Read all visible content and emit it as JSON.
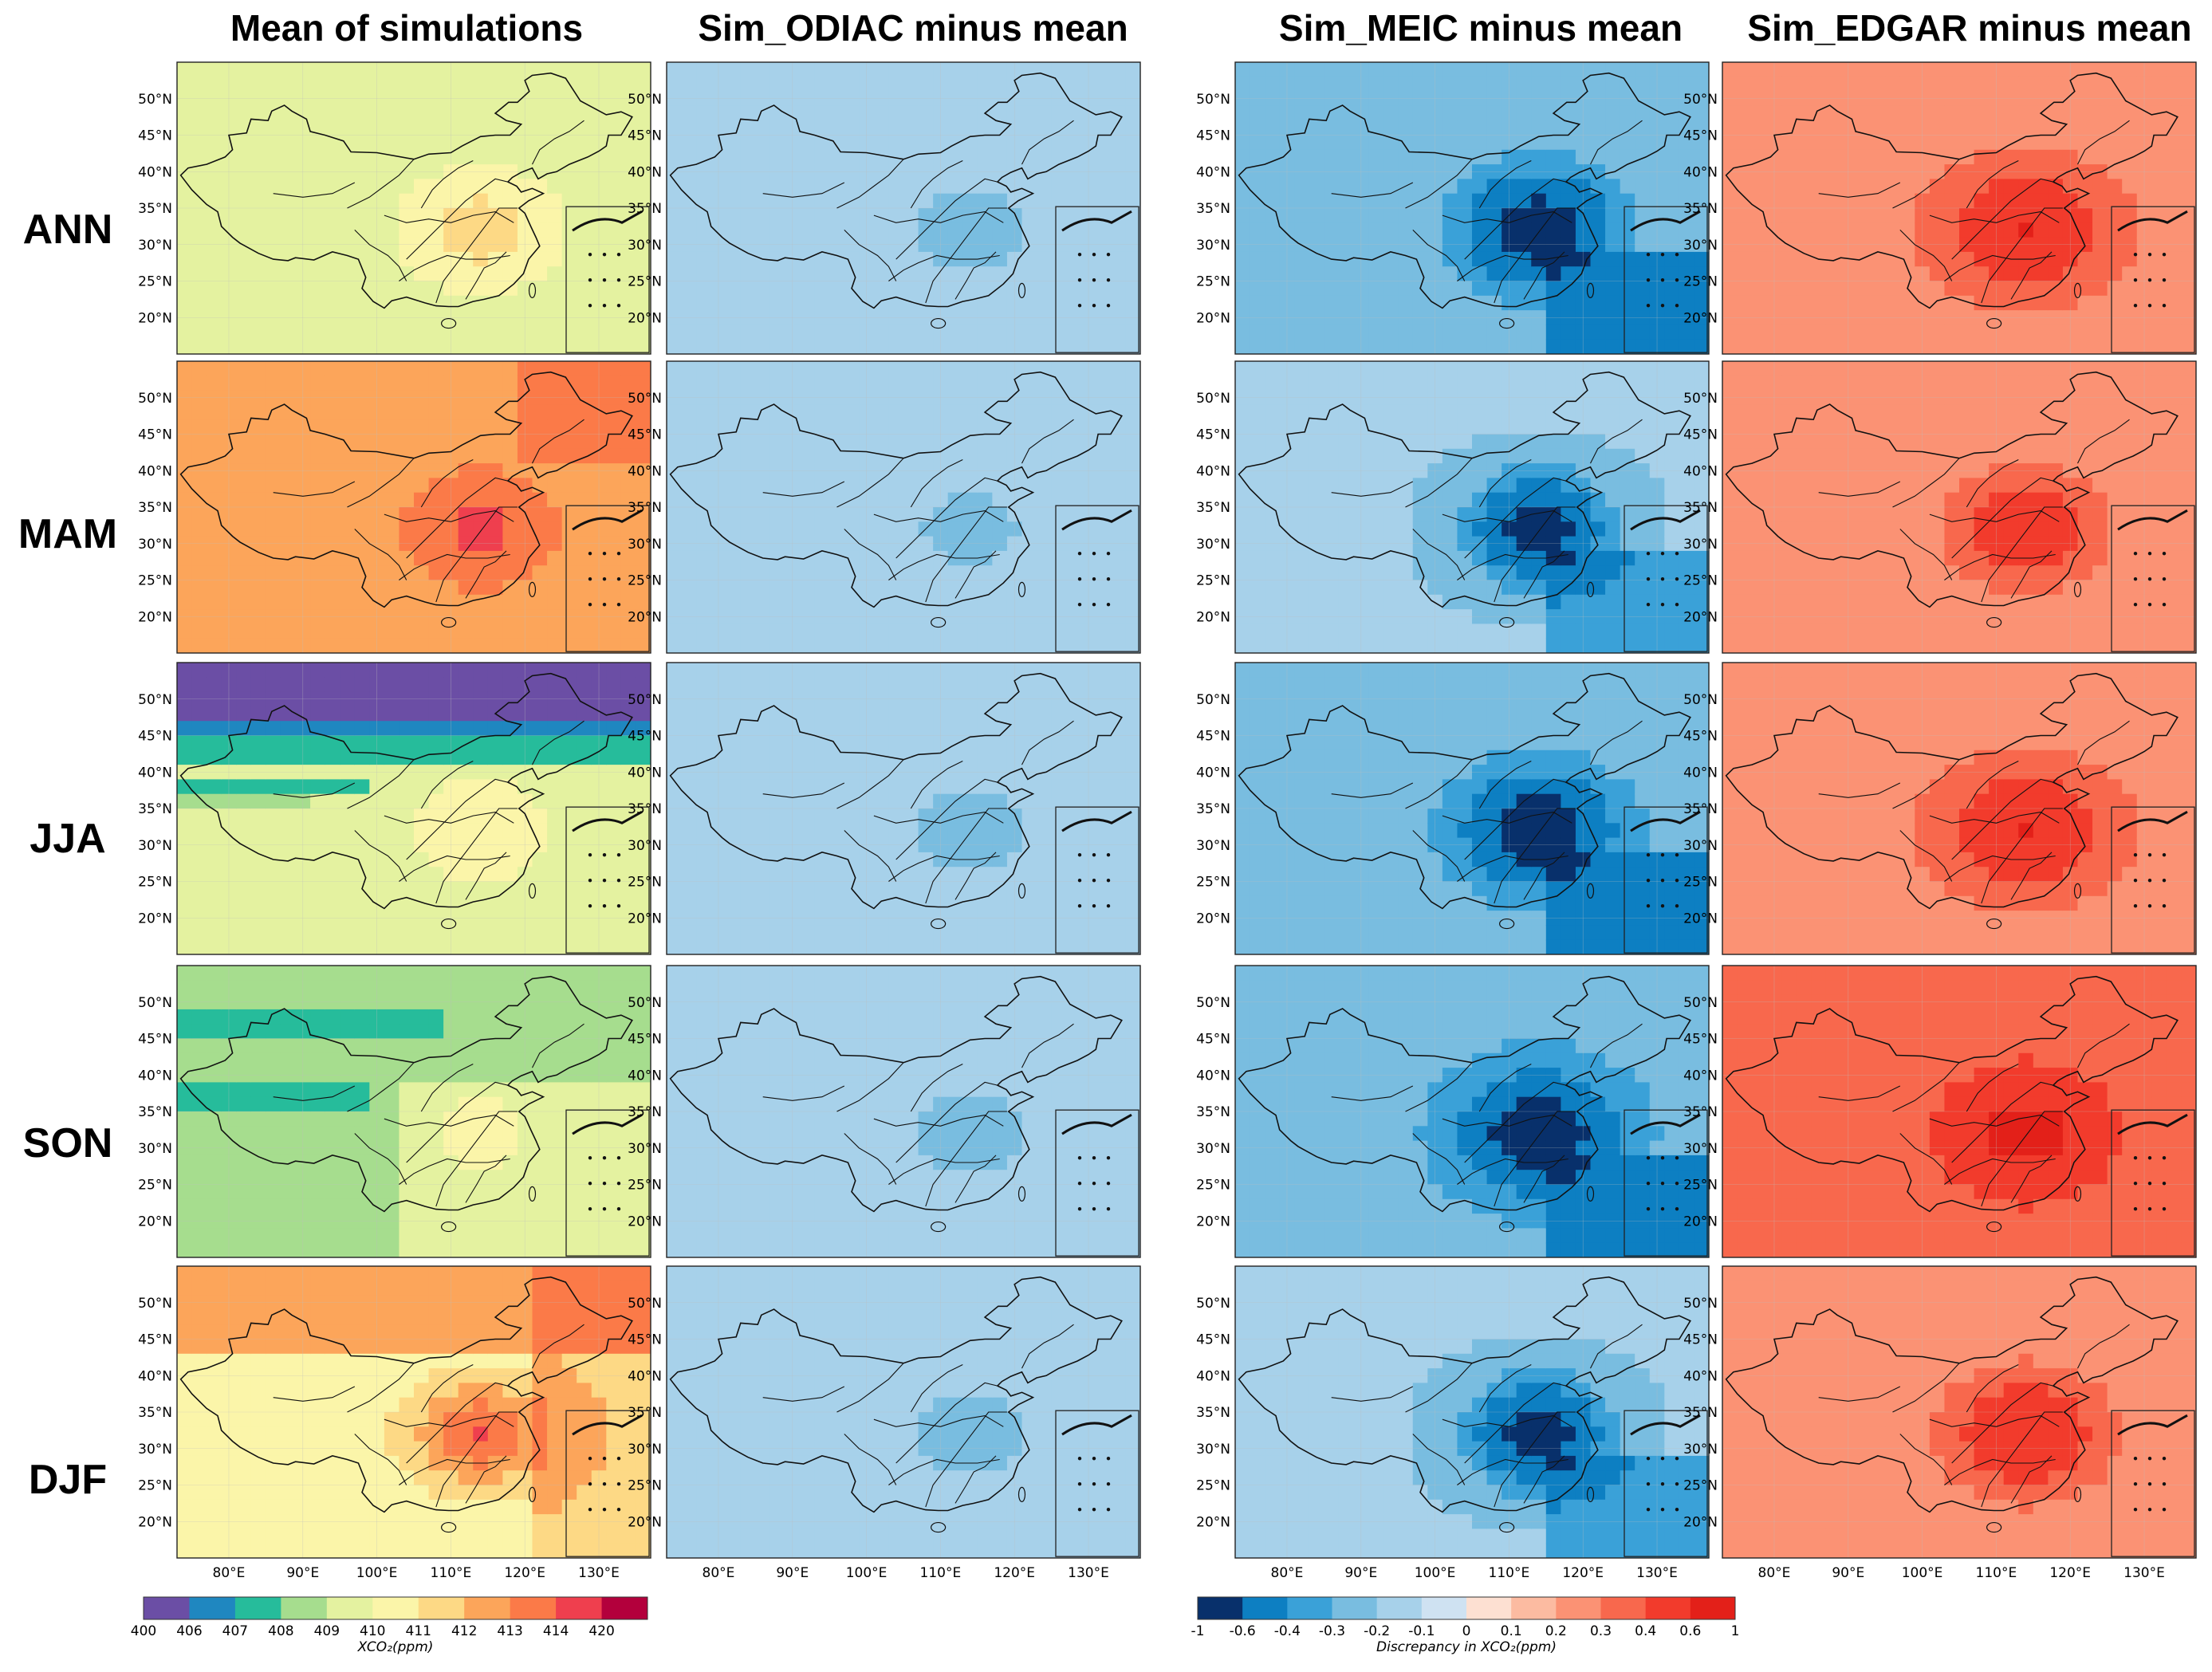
{
  "chart_data": {
    "type": "heatmap",
    "column_titles": [
      "Mean of simulations",
      "Sim_ODIAC minus mean",
      "Sim_MEIC minus mean",
      "Sim_EDGAR minus mean"
    ],
    "row_labels": [
      "ANN",
      "MAM",
      "JJA",
      "SON",
      "DJF"
    ],
    "lat_ticks": [
      "50°N",
      "45°N",
      "40°N",
      "35°N",
      "30°N",
      "25°N",
      "20°N"
    ],
    "lon_ticks": [
      "80°E",
      "90°E",
      "100°E",
      "110°E",
      "120°E",
      "130°E"
    ],
    "lon_range": [
      73,
      137
    ],
    "lat_range": [
      15,
      55
    ],
    "colorbar_mean": {
      "ticks": [
        "400",
        "406",
        "407",
        "408",
        "409",
        "410",
        "411",
        "412",
        "413",
        "414",
        "420"
      ],
      "colors": [
        "#6b4ea5",
        "#1f87c0",
        "#26bc9b",
        "#a6dd8e",
        "#e4f2a0",
        "#fbf5a9",
        "#fdd985",
        "#fca55a",
        "#fb7a48",
        "#ef3f4e",
        "#b3003c"
      ],
      "label": "XCO₂(ppm)"
    },
    "colorbar_diff": {
      "ticks": [
        "-1",
        "-0.6",
        "-0.4",
        "-0.3",
        "-0.2",
        "-0.1",
        "0",
        "0.1",
        "0.2",
        "0.3",
        "0.4",
        "0.6",
        "1"
      ],
      "colors": [
        "#08306b",
        "#0d7fc2",
        "#3aa1d8",
        "#79bde0",
        "#a7d1ea",
        "#cfe2f2",
        "#fde0d2",
        "#fcbba1",
        "#fb9274",
        "#f8684d",
        "#f23b2c",
        "#e32019"
      ],
      "label": "Discrepancy in XCO₂(ppm)"
    },
    "panels": {
      "mean": {
        "ANN": 410.5,
        "MAM": 413.0,
        "JJA": 408.6,
        "SON": 409.2,
        "DJF": 412.0
      },
      "odiac": {
        "ANN": -0.12,
        "MAM": -0.11,
        "JJA": -0.12,
        "SON": -0.12,
        "DJF": -0.12
      },
      "meic": {
        "ANN": -0.25,
        "MAM": -0.19,
        "JJA": -0.26,
        "SON": -0.28,
        "DJF": -0.19
      },
      "edgar": {
        "ANN": 0.28,
        "MAM": 0.24,
        "JJA": 0.28,
        "SON": 0.36,
        "DJF": 0.26
      }
    }
  }
}
